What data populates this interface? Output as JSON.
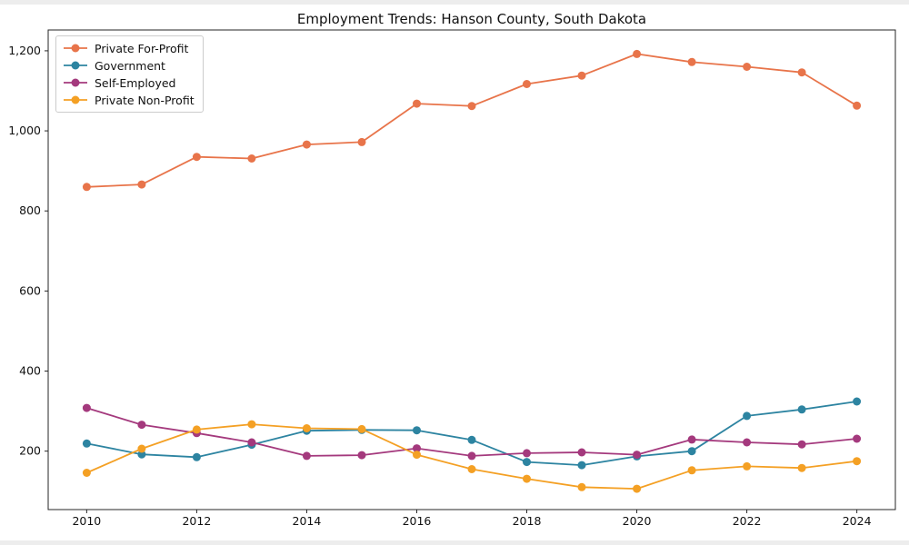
{
  "figure": {
    "title": "Employment Trends: Hanson County, South Dakota"
  },
  "chart_data": {
    "type": "line",
    "title": "Employment Trends: Hanson County, South Dakota",
    "xlabel": "",
    "ylabel": "",
    "grid": false,
    "legend_position": "upper-left",
    "marker": "circle",
    "x": [
      2010,
      2011,
      2012,
      2013,
      2014,
      2015,
      2016,
      2017,
      2018,
      2019,
      2020,
      2021,
      2022,
      2023,
      2024
    ],
    "series": [
      {
        "name": "Private For-Profit",
        "color": "#e8744a",
        "values": [
          860,
          866,
          935,
          931,
          966,
          972,
          1068,
          1062,
          1117,
          1138,
          1192,
          1172,
          1160,
          1146,
          1063
        ]
      },
      {
        "name": "Government",
        "color": "#2d84a1",
        "values": [
          219,
          192,
          185,
          216,
          251,
          253,
          252,
          228,
          173,
          165,
          187,
          200,
          288,
          304,
          324
        ]
      },
      {
        "name": "Self-Employed",
        "color": "#a4397d",
        "values": [
          308,
          266,
          245,
          222,
          188,
          190,
          207,
          188,
          195,
          197,
          191,
          229,
          222,
          217,
          231
        ]
      },
      {
        "name": "Private Non-Profit",
        "color": "#f4a024",
        "values": [
          146,
          206,
          254,
          267,
          257,
          255,
          191,
          155,
          131,
          110,
          106,
          152,
          162,
          158,
          175
        ]
      }
    ],
    "xlim": [
      2009.3,
      2024.7
    ],
    "ylim": [
      54,
      1252
    ],
    "xticks": {
      "values": [
        2010,
        2012,
        2014,
        2016,
        2018,
        2020,
        2022,
        2024
      ],
      "labels": [
        "2010",
        "2012",
        "2014",
        "2016",
        "2018",
        "2020",
        "2022",
        "2024"
      ]
    },
    "yticks": {
      "values": [
        200,
        400,
        600,
        800,
        1000,
        1200
      ],
      "labels": [
        "200",
        "400",
        "600",
        "800",
        "1,000",
        "1,200"
      ]
    }
  }
}
